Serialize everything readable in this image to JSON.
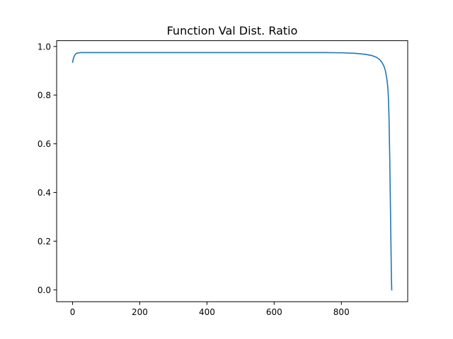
{
  "chart_data": {
    "type": "line",
    "title": "Function Val Dist. Ratio",
    "xlabel": "",
    "ylabel": "",
    "xlim": [
      -47.5,
      997.5
    ],
    "ylim": [
      -0.04875,
      1.02375
    ],
    "xticks": [
      0,
      200,
      400,
      600,
      800
    ],
    "xtick_labels": [
      "0",
      "200",
      "400",
      "600",
      "800"
    ],
    "yticks": [
      0.0,
      0.2,
      0.4,
      0.6,
      0.8,
      1.0
    ],
    "ytick_labels": [
      "0.0",
      "0.2",
      "0.4",
      "0.6",
      "0.8",
      "1.0"
    ],
    "grid": false,
    "legend": false,
    "series": [
      {
        "color": "#1f77b4",
        "x": [
          0,
          2,
          4,
          6,
          8,
          10,
          12,
          15,
          20,
          25,
          30,
          40,
          50,
          100,
          200,
          300,
          400,
          500,
          600,
          700,
          750,
          800,
          840,
          870,
          890,
          905,
          915,
          922,
          928,
          932,
          935,
          937,
          939,
          940,
          941,
          942,
          943,
          944,
          945,
          946,
          947,
          948,
          949,
          950
        ],
        "values": [
          0.935,
          0.948,
          0.957,
          0.963,
          0.967,
          0.97,
          0.972,
          0.973,
          0.974,
          0.975,
          0.975,
          0.975,
          0.975,
          0.975,
          0.975,
          0.975,
          0.975,
          0.975,
          0.975,
          0.975,
          0.975,
          0.974,
          0.972,
          0.968,
          0.963,
          0.955,
          0.945,
          0.932,
          0.915,
          0.895,
          0.87,
          0.85,
          0.82,
          0.79,
          0.75,
          0.7,
          0.62,
          0.55,
          0.45,
          0.35,
          0.25,
          0.15,
          0.05,
          0.0
        ]
      }
    ]
  }
}
